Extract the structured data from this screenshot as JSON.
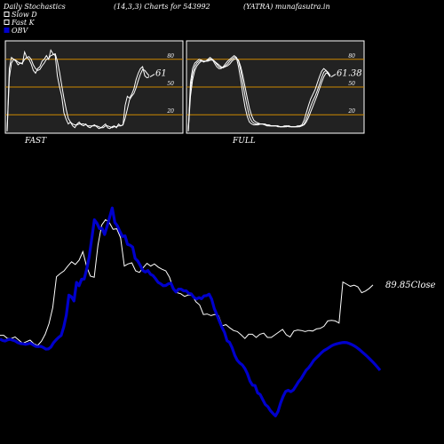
{
  "header": {
    "left": "Daily Stochastics",
    "params": "(14,3,3) Charts for 543992",
    "site": "(YATRA) munafasutra.in"
  },
  "legend": {
    "slow_d": "Slow  D",
    "fast_k": "Fast K",
    "obv": "OBV"
  },
  "colors": {
    "obv": "#0000cc",
    "line": "#ffffff",
    "level": "#cc8800",
    "panel": "#222222"
  },
  "chart_data": [
    {
      "type": "line",
      "title": "FAST",
      "ylim": [
        0,
        100
      ],
      "ticks": [
        20,
        50,
        80
      ],
      "levels": [
        20,
        50,
        80
      ],
      "end_label": "61",
      "series": [
        {
          "values": [
            2,
            70,
            82,
            80,
            78,
            74,
            76,
            75,
            88,
            82,
            80,
            75,
            68,
            65,
            70,
            72,
            78,
            80,
            84,
            80,
            90,
            86,
            84,
            62,
            50,
            40,
            22,
            15,
            10,
            12,
            8,
            6,
            10,
            12,
            9,
            8,
            10,
            7,
            6,
            8,
            9,
            7,
            5,
            6,
            8,
            10,
            6,
            5,
            7,
            8,
            6,
            10,
            8,
            9,
            30,
            40,
            38,
            42,
            48,
            58,
            65,
            70,
            72,
            62,
            60,
            61
          ]
        },
        {
          "values": [
            2,
            60,
            76,
            80,
            79,
            77,
            76,
            76,
            80,
            82,
            83,
            80,
            74,
            70,
            68,
            69,
            73,
            76,
            80,
            81,
            84,
            85,
            86,
            78,
            66,
            52,
            38,
            26,
            16,
            12,
            10,
            9,
            9,
            10,
            10,
            10,
            9,
            8,
            8,
            8,
            8,
            8,
            7,
            6,
            6,
            8,
            8,
            7,
            6,
            7,
            7,
            8,
            8,
            9,
            16,
            26,
            36,
            40,
            43,
            49,
            57,
            64,
            69,
            68,
            65,
            62
          ]
        }
      ]
    },
    {
      "type": "line",
      "title": "FULL",
      "ylim": [
        0,
        100
      ],
      "ticks": [
        20,
        50,
        80
      ],
      "levels": [
        20,
        50,
        80
      ],
      "end_label": "61.38",
      "series": [
        {
          "values": [
            2,
            55,
            70,
            76,
            78,
            80,
            79,
            77,
            78,
            80,
            82,
            80,
            76,
            72,
            70,
            70,
            72,
            75,
            78,
            80,
            82,
            84,
            82,
            72,
            58,
            42,
            28,
            18,
            12,
            10,
            9,
            9,
            9,
            10,
            10,
            9,
            8,
            8,
            8,
            8,
            8,
            7,
            7,
            7,
            8,
            8,
            7,
            7,
            7,
            7,
            8,
            8,
            9,
            14,
            22,
            30,
            37,
            42,
            47,
            54,
            61,
            67,
            70,
            68,
            64,
            61
          ]
        },
        {
          "values": [
            2,
            48,
            64,
            72,
            76,
            78,
            79,
            78,
            78,
            79,
            80,
            80,
            78,
            75,
            72,
            71,
            71,
            73,
            75,
            78,
            80,
            82,
            82,
            78,
            68,
            54,
            40,
            28,
            18,
            13,
            11,
            10,
            10,
            10,
            10,
            9,
            9,
            8,
            8,
            8,
            8,
            8,
            7,
            7,
            7,
            8,
            8,
            7,
            7,
            7,
            7,
            8,
            8,
            10,
            15,
            22,
            29,
            35,
            40,
            46,
            53,
            60,
            66,
            68,
            66,
            62
          ]
        },
        {
          "values": [
            2,
            40,
            58,
            68,
            73,
            76,
            78,
            78,
            78,
            78,
            79,
            79,
            78,
            76,
            74,
            72,
            71,
            72,
            73,
            75,
            78,
            80,
            81,
            79,
            72,
            62,
            50,
            38,
            27,
            19,
            14,
            12,
            11,
            10,
            10,
            10,
            9,
            9,
            8,
            8,
            8,
            8,
            7,
            7,
            7,
            7,
            8,
            7,
            7,
            7,
            7,
            7,
            8,
            9,
            12,
            17,
            23,
            29,
            35,
            41,
            48,
            55,
            61,
            65,
            65,
            62
          ]
        }
      ]
    },
    {
      "type": "line",
      "title": "",
      "end_label": "89.85Close",
      "series": [
        {
          "name": "Close",
          "values": [
            80.4,
            80.4,
            79.8,
            79.8,
            80.1,
            79.5,
            78.9,
            79.2,
            79.5,
            78.8,
            78.5,
            79.3,
            80.6,
            82.6,
            85.6,
            91.4,
            92.0,
            92.5,
            93.4,
            94.2,
            93.7,
            94.5,
            96.1,
            93.3,
            91.5,
            91.3,
            97.3,
            101.1,
            102.1,
            101.6,
            100.3,
            100.4,
            98.7,
            93.4,
            93.8,
            94.0,
            92.5,
            92.2,
            93.1,
            93.9,
            93.4,
            93.8,
            93.2,
            92.8,
            92.5,
            91.3,
            89.1,
            88.4,
            88.2,
            87.7,
            88.0,
            87.9,
            86.7,
            86.1,
            84.3,
            84.4,
            84.1,
            84.3,
            84.1,
            82.2,
            82.4,
            81.8,
            81.3,
            81.1,
            80.5,
            79.8,
            80.6,
            80.6,
            80.0,
            80.6,
            80.8,
            80.0,
            80.0,
            80.5,
            81.0,
            81.5,
            80.5,
            80.1,
            81.2,
            81.4,
            81.3,
            81.1,
            81.3,
            81.2,
            81.6,
            81.7,
            82.1,
            83.1,
            83.2,
            83.1,
            82.7,
            90.4,
            90.0,
            89.6,
            89.8,
            89.5,
            88.4,
            88.7,
            89.2,
            89.85
          ]
        },
        {
          "name": "OBV",
          "values": [
            -5.2,
            -5.7,
            -5.9,
            -5.5,
            -5.3,
            -5.6,
            -5.9,
            -6.5,
            -6.8,
            -6.9,
            -7.1,
            -6.9,
            -6.7,
            -7.3,
            -7.8,
            -7.9,
            -7.8,
            -8.2,
            -8.8,
            -8.7,
            -8.0,
            -6.5,
            -5.5,
            -4.6,
            -3.9,
            -0.9,
            3.3,
            10.4,
            9.8,
            8.3,
            14.9,
            13.7,
            16.0,
            16.1,
            19.7,
            24.1,
            30.6,
            37.1,
            35.9,
            34.0,
            34.1,
            31.9,
            34.8,
            38.1,
            41.3,
            36.2,
            35.0,
            33.0,
            31.2,
            31.4,
            28.4,
            28.1,
            27.4,
            23.4,
            22.5,
            20.9,
            19.1,
            18.6,
            19.1,
            17.8,
            17.3,
            16.2,
            14.9,
            14.4,
            13.7,
            13.8,
            14.4,
            14.6,
            12.6,
            11.5,
            12.5,
            12.5,
            11.9,
            11.9,
            11.0,
            10.8,
            9.6,
            9.0,
            9.5,
            9.1,
            10.1,
            10.2,
            10.7,
            8.9,
            5.6,
            3.5,
            1.2,
            -1.0,
            -2.8,
            -5.8,
            -6.4,
            -8.3,
            -10.9,
            -12.7,
            -13.7,
            -14.4,
            -15.7,
            -17.5,
            -20.1,
            -21.6,
            -21.7,
            -24.3,
            -24.9,
            -26.7,
            -28.4,
            -29.2,
            -30.6,
            -31.6,
            -32.5,
            -30.9,
            -27.9,
            -25.6,
            -23.8,
            -23.4,
            -23.9,
            -23.3,
            -21.9,
            -20.4,
            -19.3,
            -17.8,
            -16.3,
            -15.4,
            -14.2,
            -12.8,
            -11.9,
            -11.0,
            -10.1,
            -9.3,
            -8.8,
            -8.2,
            -7.6,
            -7.2,
            -6.9,
            -6.7,
            -6.5,
            -6.4,
            -6.5,
            -6.8,
            -7.2,
            -7.7,
            -8.3,
            -9.0,
            -9.8,
            -10.6,
            -11.4,
            -12.3,
            -13.2,
            -14.2,
            -15.2,
            -16.3
          ]
        }
      ]
    }
  ]
}
